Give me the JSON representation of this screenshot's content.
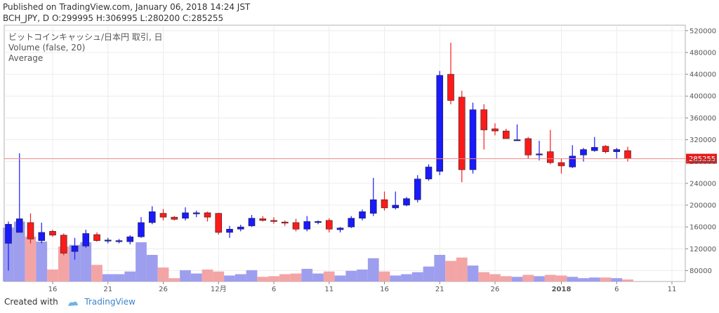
{
  "header": {
    "line1": "Published on TradingView.com, January 06, 2018 14:24 JST",
    "line2": "BCH_JPY, D O:299995 H:306995 L:280200 C:285255"
  },
  "footer": {
    "created_with": "Created with",
    "brand": "TradingView"
  },
  "chart_data": {
    "type": "candlestick",
    "legend": [
      "ビットコインキャッシュ/日本円 取引, 日",
      "Volume (false, 20)",
      "Average"
    ],
    "last_price_label": "285255",
    "ylim": [
      60000,
      530000
    ],
    "y_ticks": [
      80000,
      120000,
      160000,
      200000,
      240000,
      280000,
      320000,
      360000,
      400000,
      440000,
      480000,
      520000
    ],
    "x_ticks": [
      {
        "i": 4,
        "label": "16"
      },
      {
        "i": 9,
        "label": "21"
      },
      {
        "i": 14,
        "label": "26"
      },
      {
        "i": 19,
        "label": "12月"
      },
      {
        "i": 24,
        "label": "6"
      },
      {
        "i": 29,
        "label": "11"
      },
      {
        "i": 34,
        "label": "16"
      },
      {
        "i": 39,
        "label": "21"
      },
      {
        "i": 44,
        "label": "26"
      },
      {
        "i": 50,
        "label": "2018",
        "bold": true
      },
      {
        "i": 55,
        "label": "6"
      },
      {
        "i": 60,
        "label": "11"
      }
    ],
    "up_color": "#1a1aff",
    "down_color": "#ff1a1a",
    "candles": [
      {
        "o": 130000,
        "h": 170000,
        "l": 80000,
        "c": 165000,
        "v": 162
      },
      {
        "o": 150000,
        "h": 295000,
        "l": 150000,
        "c": 175000,
        "v": 180
      },
      {
        "o": 168000,
        "h": 185000,
        "l": 130000,
        "c": 138000,
        "v": 135
      },
      {
        "o": 135000,
        "h": 168000,
        "l": 130000,
        "c": 150000,
        "v": 120
      },
      {
        "o": 152000,
        "h": 155000,
        "l": 142000,
        "c": 145000,
        "v": 36
      },
      {
        "o": 145000,
        "h": 148000,
        "l": 108000,
        "c": 112000,
        "v": 105
      },
      {
        "o": 115000,
        "h": 140000,
        "l": 100000,
        "c": 125000,
        "v": 110
      },
      {
        "o": 125000,
        "h": 155000,
        "l": 122000,
        "c": 148000,
        "v": 118
      },
      {
        "o": 146000,
        "h": 150000,
        "l": 133000,
        "c": 135000,
        "v": 50
      },
      {
        "o": 136000,
        "h": 140000,
        "l": 130000,
        "c": 136000,
        "v": 22
      },
      {
        "o": 133000,
        "h": 138000,
        "l": 130000,
        "c": 135000,
        "v": 22
      },
      {
        "o": 133000,
        "h": 145000,
        "l": 128000,
        "c": 142000,
        "v": 30
      },
      {
        "o": 142000,
        "h": 178000,
        "l": 140000,
        "c": 168000,
        "v": 118
      },
      {
        "o": 168000,
        "h": 198000,
        "l": 165000,
        "c": 188000,
        "v": 80
      },
      {
        "o": 185000,
        "h": 193000,
        "l": 172000,
        "c": 178000,
        "v": 42
      },
      {
        "o": 178000,
        "h": 180000,
        "l": 172000,
        "c": 174000,
        "v": 10
      },
      {
        "o": 176000,
        "h": 196000,
        "l": 172000,
        "c": 186000,
        "v": 34
      },
      {
        "o": 184000,
        "h": 190000,
        "l": 178000,
        "c": 186000,
        "v": 24
      },
      {
        "o": 186000,
        "h": 188000,
        "l": 170000,
        "c": 178000,
        "v": 36
      },
      {
        "o": 185000,
        "h": 186000,
        "l": 146000,
        "c": 150000,
        "v": 30
      },
      {
        "o": 150000,
        "h": 162000,
        "l": 140000,
        "c": 156000,
        "v": 18
      },
      {
        "o": 156000,
        "h": 164000,
        "l": 152000,
        "c": 160000,
        "v": 22
      },
      {
        "o": 162000,
        "h": 182000,
        "l": 160000,
        "c": 176000,
        "v": 34
      },
      {
        "o": 175000,
        "h": 180000,
        "l": 170000,
        "c": 172000,
        "v": 14
      },
      {
        "o": 172000,
        "h": 178000,
        "l": 166000,
        "c": 170000,
        "v": 16
      },
      {
        "o": 169000,
        "h": 172000,
        "l": 162000,
        "c": 168000,
        "v": 22
      },
      {
        "o": 168000,
        "h": 175000,
        "l": 152000,
        "c": 156000,
        "v": 24
      },
      {
        "o": 156000,
        "h": 180000,
        "l": 152000,
        "c": 170000,
        "v": 38
      },
      {
        "o": 169000,
        "h": 172000,
        "l": 165000,
        "c": 170000,
        "v": 24
      },
      {
        "o": 172000,
        "h": 176000,
        "l": 150000,
        "c": 156000,
        "v": 30
      },
      {
        "o": 155000,
        "h": 160000,
        "l": 150000,
        "c": 158000,
        "v": 18
      },
      {
        "o": 160000,
        "h": 180000,
        "l": 158000,
        "c": 176000,
        "v": 32
      },
      {
        "o": 176000,
        "h": 192000,
        "l": 172000,
        "c": 188000,
        "v": 36
      },
      {
        "o": 185000,
        "h": 250000,
        "l": 180000,
        "c": 210000,
        "v": 70
      },
      {
        "o": 210000,
        "h": 225000,
        "l": 190000,
        "c": 195000,
        "v": 30
      },
      {
        "o": 195000,
        "h": 225000,
        "l": 192000,
        "c": 200000,
        "v": 18
      },
      {
        "o": 200000,
        "h": 215000,
        "l": 198000,
        "c": 212000,
        "v": 22
      },
      {
        "o": 210000,
        "h": 255000,
        "l": 205000,
        "c": 248000,
        "v": 28
      },
      {
        "o": 248000,
        "h": 275000,
        "l": 245000,
        "c": 270000,
        "v": 45
      },
      {
        "o": 262000,
        "h": 446000,
        "l": 255000,
        "c": 438000,
        "v": 80
      },
      {
        "o": 440000,
        "h": 498000,
        "l": 385000,
        "c": 392000,
        "v": 62
      },
      {
        "o": 398000,
        "h": 410000,
        "l": 242000,
        "c": 265000,
        "v": 72
      },
      {
        "o": 265000,
        "h": 388000,
        "l": 258000,
        "c": 375000,
        "v": 48
      },
      {
        "o": 375000,
        "h": 385000,
        "l": 302000,
        "c": 338000,
        "v": 28
      },
      {
        "o": 340000,
        "h": 350000,
        "l": 328000,
        "c": 336000,
        "v": 22
      },
      {
        "o": 336000,
        "h": 340000,
        "l": 322000,
        "c": 322000,
        "v": 16
      },
      {
        "o": 320000,
        "h": 348000,
        "l": 318000,
        "c": 320000,
        "v": 14
      },
      {
        "o": 322000,
        "h": 325000,
        "l": 285000,
        "c": 292000,
        "v": 20
      },
      {
        "o": 294000,
        "h": 318000,
        "l": 282000,
        "c": 294000,
        "v": 16
      },
      {
        "o": 298000,
        "h": 338000,
        "l": 275000,
        "c": 278000,
        "v": 20
      },
      {
        "o": 278000,
        "h": 285000,
        "l": 258000,
        "c": 272000,
        "v": 18
      },
      {
        "o": 270000,
        "h": 310000,
        "l": 268000,
        "c": 290000,
        "v": 14
      },
      {
        "o": 292000,
        "h": 305000,
        "l": 280000,
        "c": 302000,
        "v": 10
      },
      {
        "o": 300000,
        "h": 325000,
        "l": 298000,
        "c": 306000,
        "v": 12
      },
      {
        "o": 308000,
        "h": 310000,
        "l": 295000,
        "c": 298000,
        "v": 12
      },
      {
        "o": 298000,
        "h": 305000,
        "l": 285000,
        "c": 302000,
        "v": 10
      },
      {
        "o": 299995,
        "h": 306995,
        "l": 280200,
        "c": 285255,
        "v": 6
      }
    ]
  }
}
